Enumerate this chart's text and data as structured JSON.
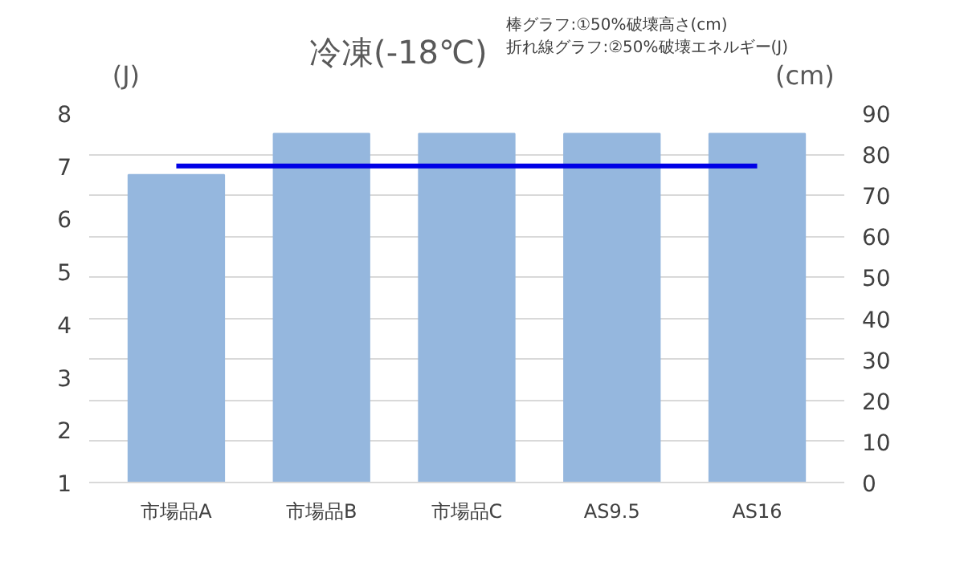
{
  "chart_data": {
    "type": "bar",
    "title": "冷凍(-18℃)",
    "annotations": [
      "棒グラフ:①50%破壊高さ(cm)",
      "折れ線グラフ:②50%破壊エネルギー(J)"
    ],
    "ylabel": "(J)",
    "y2label": "(cm)",
    "categories": [
      "市場品A",
      "市場品B",
      "市場品C",
      "AS9.5",
      "AS16"
    ],
    "series": [
      {
        "axis": "y2",
        "color": "#95b7de",
        "values": [
          75,
          85,
          85,
          85,
          85
        ]
      },
      {
        "type": "line",
        "axis": "y",
        "color": "#0000e6",
        "values": [
          7.0,
          7.0,
          7.0,
          7.0,
          7.0
        ]
      }
    ],
    "ylim": [
      1,
      8
    ],
    "yticks": [
      1,
      2,
      3,
      4,
      5,
      6,
      7,
      8
    ],
    "y2lim": [
      0,
      90
    ],
    "y2ticks": [
      0,
      10,
      20,
      30,
      40,
      50,
      60,
      70,
      80,
      90
    ],
    "grid": "y2",
    "marker": "none",
    "line_style": "solid"
  }
}
